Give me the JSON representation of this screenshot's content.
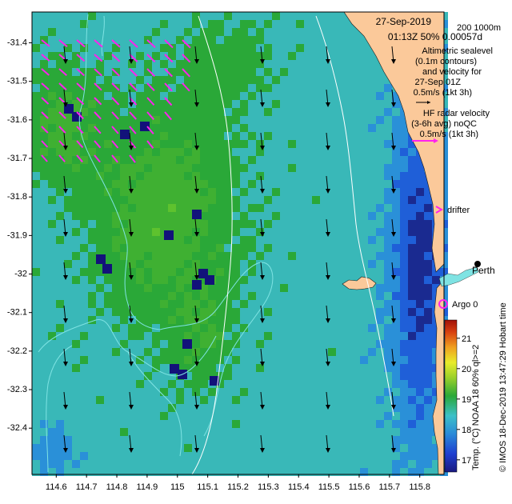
{
  "header": {
    "date": "27-Sep-2019",
    "time_info": "01:13Z  50% 0.00057d",
    "depth_contours": "200  1000m"
  },
  "legend": {
    "altimetry_lines": [
      "Altimetric sealevel",
      "(0.1m contours)",
      "and velocity for",
      "27-Sep 01Z",
      "0.5m/s (1kt 3h)"
    ],
    "hf_lines": [
      "HF radar velocity",
      "(3-6h avg) noQC",
      "0.5m/s (1kt 3h)"
    ],
    "drifter_label": "drifter",
    "argo_label": "Argo 0",
    "city_label": "Perth"
  },
  "axes": {
    "x_ticks": [
      "114.6",
      "114.7",
      "114.8",
      "114.9",
      "115",
      "115.1",
      "115.2",
      "115.3",
      "115.4",
      "115.5",
      "115.6",
      "115.7",
      "115.8"
    ],
    "y_ticks": [
      "-31.4",
      "-31.5",
      "-31.6",
      "-31.7",
      "-31.8",
      "-31.9",
      "-32",
      "-32.1",
      "-32.2",
      "-32.3",
      "-32.4"
    ],
    "lon_range": [
      114.52,
      115.88
    ],
    "lat_range": [
      -32.52,
      -31.32
    ]
  },
  "colorbar": {
    "title": "Temp. (°C) NOAA 18 60% ql>=2",
    "ticks": [
      "17",
      "18",
      "19",
      "20",
      "21"
    ],
    "range": [
      16.6,
      21.6
    ]
  },
  "credit": "© IMOS 18-Dec-2019 13:47:29 Hobart time",
  "colors": {
    "land": "#fbc99a",
    "contour": "#7fe3e3",
    "hf_arrow": "#ff22ee",
    "argo": "#ff22ee"
  }
}
